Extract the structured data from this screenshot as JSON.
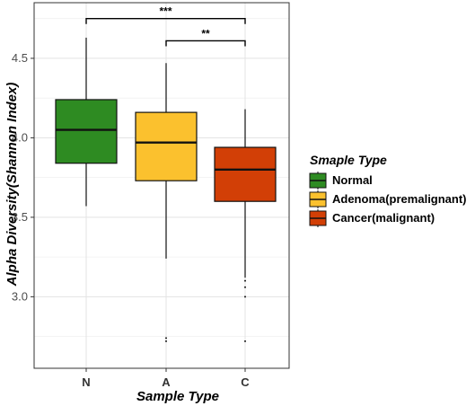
{
  "chart_data": {
    "type": "boxplot",
    "xlabel": "Sample Type",
    "ylabel": "Alpha Diversity(Shannon Index)",
    "categories": [
      "N",
      "A",
      "C"
    ],
    "ylim": [
      2.55,
      4.85
    ],
    "yticks": [
      3.0,
      3.5,
      4.0,
      4.5
    ],
    "ytick_labels": [
      "3.0",
      "3.5",
      "4.0",
      "4.5"
    ],
    "grid": true,
    "legend": {
      "title": "Smaple Type",
      "position": "right",
      "entries": [
        "Normal",
        "Adenoma(premalignant)",
        "Cancer(malignant)"
      ]
    },
    "series": [
      {
        "name": "Normal",
        "category": "N",
        "color": "#2e8b22",
        "min": 3.57,
        "q1": 3.84,
        "median": 4.05,
        "q3": 4.24,
        "max": 4.63,
        "outliers": []
      },
      {
        "name": "Adenoma(premalignant)",
        "category": "A",
        "color": "#fbc12e",
        "min": 3.24,
        "q1": 3.73,
        "median": 3.97,
        "q3": 4.16,
        "max": 4.47,
        "outliers": [
          2.74,
          2.72
        ]
      },
      {
        "name": "Cancer(malignant)",
        "category": "C",
        "color": "#d23f06",
        "min": 3.12,
        "q1": 3.6,
        "median": 3.8,
        "q3": 3.94,
        "max": 4.18,
        "outliers": [
          3.1,
          3.06,
          3.0,
          2.72
        ]
      }
    ],
    "significance": [
      {
        "from": "N",
        "to": "C",
        "label": "***",
        "y": 4.75
      },
      {
        "from": "A",
        "to": "C",
        "label": "**",
        "y": 4.61
      }
    ]
  }
}
